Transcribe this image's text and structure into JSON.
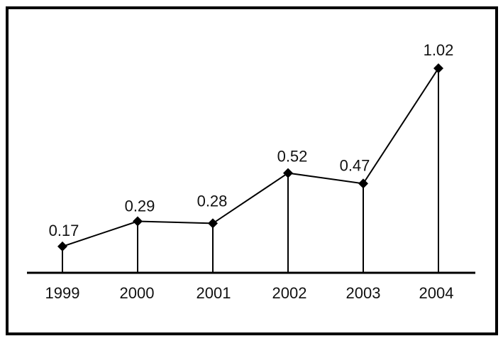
{
  "figure": {
    "title": "",
    "background_color": "#ffffff",
    "frame_color": "#000000",
    "line_color": "#000000",
    "marker_color": "#000000",
    "text_color": "#111111",
    "marker_shape": "diamond"
  },
  "chart_data": {
    "type": "line",
    "title": "",
    "xlabel": "",
    "ylabel": "",
    "categories": [
      "1999",
      "2000",
      "2001",
      "2002",
      "2003",
      "2004"
    ],
    "values": [
      0.17,
      0.29,
      0.28,
      0.52,
      0.47,
      1.02
    ],
    "data_labels": [
      "0.17",
      "0.29",
      "0.28",
      "0.52",
      "0.47",
      "1.02"
    ],
    "series": [
      {
        "name": "series-1",
        "values": [
          0.17,
          0.29,
          0.28,
          0.52,
          0.47,
          1.02
        ]
      }
    ],
    "ylim": [
      0,
      1.1
    ],
    "grid": false,
    "legend": false,
    "y_axis_visible": false,
    "drop_lines": true,
    "annotations": []
  }
}
